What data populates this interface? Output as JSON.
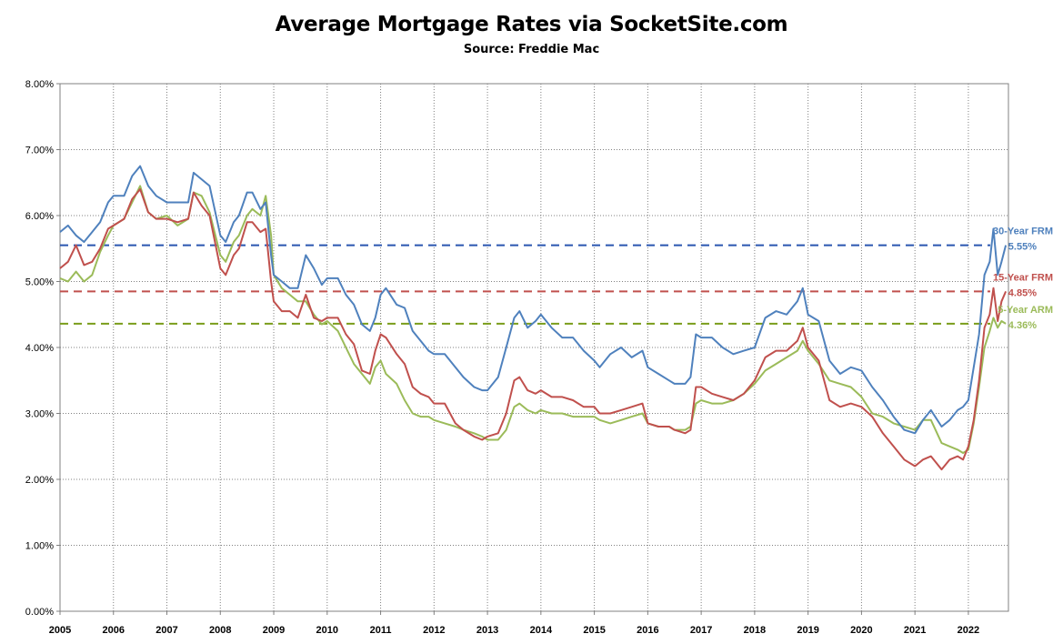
{
  "chart_data": {
    "type": "line",
    "title": "Average Mortgage Rates via SocketSite.com",
    "subtitle": "Source: Freddie Mac",
    "xlim": [
      2005,
      2022.75
    ],
    "ylim": [
      0,
      8
    ],
    "y_ticks": [
      "0.00%",
      "1.00%",
      "2.00%",
      "3.00%",
      "4.00%",
      "5.00%",
      "6.00%",
      "7.00%",
      "8.00%"
    ],
    "x_ticks": [
      "2005",
      "2006",
      "2007",
      "2008",
      "2009",
      "2010",
      "2011",
      "2012",
      "2013",
      "2014",
      "2015",
      "2016",
      "2017",
      "2018",
      "2019",
      "2020",
      "2021",
      "2022"
    ],
    "grid": true,
    "series": [
      {
        "name": "30-Year FRM",
        "color": "#4f81bd",
        "current": 5.55,
        "current_label": "5.55%",
        "x": [
          2005.0,
          2005.15,
          2005.3,
          2005.45,
          2005.6,
          2005.75,
          2005.9,
          2006.0,
          2006.2,
          2006.35,
          2006.5,
          2006.65,
          2006.8,
          2007.0,
          2007.2,
          2007.4,
          2007.5,
          2007.65,
          2007.8,
          2008.0,
          2008.1,
          2008.25,
          2008.35,
          2008.5,
          2008.6,
          2008.75,
          2008.85,
          2008.95,
          2009.0,
          2009.15,
          2009.3,
          2009.45,
          2009.6,
          2009.75,
          2009.9,
          2010.0,
          2010.2,
          2010.35,
          2010.5,
          2010.65,
          2010.8,
          2010.9,
          2011.0,
          2011.1,
          2011.3,
          2011.45,
          2011.6,
          2011.75,
          2011.9,
          2012.0,
          2012.2,
          2012.4,
          2012.55,
          2012.75,
          2012.9,
          2013.0,
          2013.2,
          2013.35,
          2013.5,
          2013.6,
          2013.75,
          2013.9,
          2014.0,
          2014.2,
          2014.4,
          2014.6,
          2014.8,
          2015.0,
          2015.1,
          2015.3,
          2015.5,
          2015.7,
          2015.9,
          2016.0,
          2016.2,
          2016.4,
          2016.5,
          2016.7,
          2016.8,
          2016.9,
          2017.0,
          2017.2,
          2017.4,
          2017.6,
          2017.8,
          2018.0,
          2018.2,
          2018.4,
          2018.6,
          2018.8,
          2018.9,
          2019.0,
          2019.2,
          2019.4,
          2019.6,
          2019.8,
          2020.0,
          2020.2,
          2020.4,
          2020.6,
          2020.8,
          2021.0,
          2021.15,
          2021.3,
          2021.5,
          2021.65,
          2021.8,
          2021.9,
          2022.0,
          2022.1,
          2022.2,
          2022.3,
          2022.4,
          2022.47,
          2022.55,
          2022.62,
          2022.7
        ],
        "values": [
          5.75,
          5.85,
          5.7,
          5.6,
          5.75,
          5.9,
          6.2,
          6.3,
          6.3,
          6.6,
          6.75,
          6.45,
          6.3,
          6.2,
          6.2,
          6.2,
          6.65,
          6.55,
          6.45,
          5.7,
          5.6,
          5.9,
          6.0,
          6.35,
          6.35,
          6.1,
          6.2,
          5.4,
          5.1,
          5.0,
          4.9,
          4.9,
          5.4,
          5.2,
          4.95,
          5.05,
          5.05,
          4.8,
          4.65,
          4.35,
          4.25,
          4.45,
          4.8,
          4.9,
          4.65,
          4.6,
          4.25,
          4.1,
          3.95,
          3.9,
          3.9,
          3.7,
          3.55,
          3.4,
          3.35,
          3.35,
          3.55,
          4.0,
          4.45,
          4.55,
          4.3,
          4.4,
          4.5,
          4.3,
          4.15,
          4.15,
          3.95,
          3.8,
          3.7,
          3.9,
          4.0,
          3.85,
          3.95,
          3.7,
          3.6,
          3.5,
          3.45,
          3.45,
          3.55,
          4.2,
          4.15,
          4.15,
          4.0,
          3.9,
          3.95,
          4.0,
          4.45,
          4.55,
          4.5,
          4.7,
          4.9,
          4.5,
          4.4,
          3.8,
          3.6,
          3.7,
          3.65,
          3.4,
          3.2,
          2.95,
          2.75,
          2.7,
          2.9,
          3.05,
          2.8,
          2.9,
          3.05,
          3.1,
          3.2,
          3.7,
          4.2,
          5.1,
          5.3,
          5.8,
          5.1,
          5.3,
          5.55
        ]
      },
      {
        "name": "15-Year FRM",
        "color": "#c0504d",
        "current": 4.85,
        "current_label": "4.85%",
        "x": [
          2005.0,
          2005.15,
          2005.3,
          2005.45,
          2005.6,
          2005.75,
          2005.9,
          2006.0,
          2006.2,
          2006.35,
          2006.5,
          2006.65,
          2006.8,
          2007.0,
          2007.2,
          2007.4,
          2007.5,
          2007.65,
          2007.8,
          2008.0,
          2008.1,
          2008.25,
          2008.35,
          2008.5,
          2008.6,
          2008.75,
          2008.85,
          2008.95,
          2009.0,
          2009.15,
          2009.3,
          2009.45,
          2009.6,
          2009.75,
          2009.9,
          2010.0,
          2010.2,
          2010.35,
          2010.5,
          2010.65,
          2010.8,
          2010.9,
          2011.0,
          2011.1,
          2011.3,
          2011.45,
          2011.6,
          2011.75,
          2011.9,
          2012.0,
          2012.2,
          2012.4,
          2012.55,
          2012.75,
          2012.9,
          2013.0,
          2013.2,
          2013.35,
          2013.5,
          2013.6,
          2013.75,
          2013.9,
          2014.0,
          2014.2,
          2014.4,
          2014.6,
          2014.8,
          2015.0,
          2015.1,
          2015.3,
          2015.5,
          2015.7,
          2015.9,
          2016.0,
          2016.2,
          2016.4,
          2016.5,
          2016.7,
          2016.8,
          2016.9,
          2017.0,
          2017.2,
          2017.4,
          2017.6,
          2017.8,
          2018.0,
          2018.2,
          2018.4,
          2018.6,
          2018.8,
          2018.9,
          2019.0,
          2019.2,
          2019.4,
          2019.6,
          2019.8,
          2020.0,
          2020.2,
          2020.4,
          2020.6,
          2020.8,
          2021.0,
          2021.15,
          2021.3,
          2021.5,
          2021.65,
          2021.8,
          2021.9,
          2022.0,
          2022.1,
          2022.2,
          2022.3,
          2022.4,
          2022.47,
          2022.55,
          2022.62,
          2022.7
        ],
        "values": [
          5.2,
          5.3,
          5.55,
          5.25,
          5.3,
          5.5,
          5.8,
          5.85,
          5.95,
          6.25,
          6.4,
          6.05,
          5.95,
          5.95,
          5.9,
          5.95,
          6.35,
          6.15,
          6.0,
          5.2,
          5.1,
          5.4,
          5.5,
          5.9,
          5.9,
          5.75,
          5.8,
          5.0,
          4.7,
          4.55,
          4.55,
          4.45,
          4.8,
          4.45,
          4.4,
          4.45,
          4.45,
          4.2,
          4.05,
          3.65,
          3.6,
          3.95,
          4.2,
          4.15,
          3.9,
          3.75,
          3.4,
          3.3,
          3.25,
          3.15,
          3.15,
          2.85,
          2.75,
          2.65,
          2.6,
          2.65,
          2.7,
          3.0,
          3.5,
          3.55,
          3.35,
          3.3,
          3.35,
          3.25,
          3.25,
          3.2,
          3.1,
          3.1,
          3.0,
          3.0,
          3.05,
          3.1,
          3.15,
          2.85,
          2.8,
          2.8,
          2.75,
          2.7,
          2.75,
          3.4,
          3.4,
          3.3,
          3.25,
          3.2,
          3.3,
          3.5,
          3.85,
          3.95,
          3.95,
          4.1,
          4.3,
          4.0,
          3.8,
          3.2,
          3.1,
          3.15,
          3.1,
          2.95,
          2.7,
          2.5,
          2.3,
          2.2,
          2.3,
          2.35,
          2.15,
          2.3,
          2.35,
          2.3,
          2.5,
          2.9,
          3.5,
          4.3,
          4.5,
          4.9,
          4.4,
          4.7,
          4.85
        ]
      },
      {
        "name": "5-Year ARM",
        "color": "#9bbb59",
        "current": 4.36,
        "current_label": "4.36%",
        "x": [
          2005.0,
          2005.15,
          2005.3,
          2005.45,
          2005.6,
          2005.75,
          2005.9,
          2006.0,
          2006.2,
          2006.35,
          2006.5,
          2006.65,
          2006.8,
          2007.0,
          2007.2,
          2007.4,
          2007.5,
          2007.65,
          2007.8,
          2008.0,
          2008.1,
          2008.25,
          2008.35,
          2008.5,
          2008.6,
          2008.75,
          2008.85,
          2008.95,
          2009.0,
          2009.15,
          2009.3,
          2009.45,
          2009.6,
          2009.75,
          2009.9,
          2010.0,
          2010.2,
          2010.35,
          2010.5,
          2010.65,
          2010.8,
          2010.9,
          2011.0,
          2011.1,
          2011.3,
          2011.45,
          2011.6,
          2011.75,
          2011.9,
          2012.0,
          2012.2,
          2012.4,
          2012.55,
          2012.75,
          2012.9,
          2013.0,
          2013.2,
          2013.35,
          2013.5,
          2013.6,
          2013.75,
          2013.9,
          2014.0,
          2014.2,
          2014.4,
          2014.6,
          2014.8,
          2015.0,
          2015.1,
          2015.3,
          2015.5,
          2015.7,
          2015.9,
          2016.0,
          2016.2,
          2016.4,
          2016.5,
          2016.7,
          2016.8,
          2016.9,
          2017.0,
          2017.2,
          2017.4,
          2017.6,
          2017.8,
          2018.0,
          2018.2,
          2018.4,
          2018.6,
          2018.8,
          2018.9,
          2019.0,
          2019.2,
          2019.4,
          2019.6,
          2019.8,
          2020.0,
          2020.2,
          2020.4,
          2020.6,
          2020.8,
          2021.0,
          2021.15,
          2021.3,
          2021.5,
          2021.65,
          2021.8,
          2021.9,
          2022.0,
          2022.1,
          2022.2,
          2022.3,
          2022.4,
          2022.47,
          2022.55,
          2022.62,
          2022.7
        ],
        "values": [
          5.05,
          5.0,
          5.15,
          5.0,
          5.1,
          5.45,
          5.7,
          5.85,
          5.95,
          6.2,
          6.45,
          6.05,
          5.95,
          6.0,
          5.85,
          5.95,
          6.35,
          6.3,
          6.05,
          5.4,
          5.3,
          5.6,
          5.7,
          6.0,
          6.1,
          6.0,
          6.3,
          5.7,
          5.1,
          4.9,
          4.8,
          4.7,
          4.7,
          4.5,
          4.35,
          4.4,
          4.25,
          4.0,
          3.75,
          3.6,
          3.45,
          3.7,
          3.8,
          3.6,
          3.45,
          3.2,
          3.0,
          2.95,
          2.95,
          2.9,
          2.85,
          2.8,
          2.75,
          2.7,
          2.65,
          2.6,
          2.6,
          2.75,
          3.1,
          3.15,
          3.05,
          3.0,
          3.05,
          3.0,
          3.0,
          2.95,
          2.95,
          2.95,
          2.9,
          2.85,
          2.9,
          2.95,
          3.0,
          2.85,
          2.8,
          2.8,
          2.75,
          2.75,
          2.8,
          3.15,
          3.2,
          3.15,
          3.15,
          3.2,
          3.3,
          3.45,
          3.65,
          3.75,
          3.85,
          3.95,
          4.1,
          3.95,
          3.75,
          3.5,
          3.45,
          3.4,
          3.25,
          3.0,
          2.95,
          2.85,
          2.8,
          2.75,
          2.9,
          2.9,
          2.55,
          2.5,
          2.45,
          2.4,
          2.45,
          2.85,
          3.4,
          4.0,
          4.25,
          4.45,
          4.3,
          4.4,
          4.36
        ]
      }
    ]
  }
}
